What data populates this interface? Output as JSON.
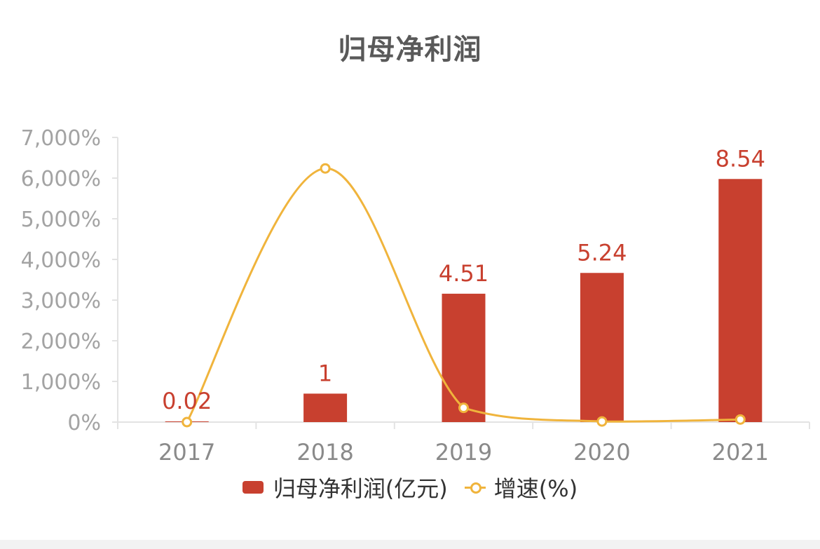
{
  "chart_data": {
    "type": "bar",
    "title": "归母净利润",
    "categories": [
      "2017",
      "2018",
      "2019",
      "2020",
      "2021"
    ],
    "series": [
      {
        "name": "归母净利润(亿元)",
        "kind": "bar",
        "color": "#c8402f",
        "values": [
          0.02,
          1,
          4.51,
          5.24,
          8.54
        ],
        "labels": [
          "0.02",
          "1",
          "4.51",
          "5.24",
          "8.54"
        ]
      },
      {
        "name": "增速(%)",
        "kind": "line",
        "color": "#f0b43c",
        "values": [
          0,
          6238,
          351,
          16,
          63
        ]
      }
    ],
    "y_axis": {
      "ticks": [
        "0%",
        "1,000%",
        "2,000%",
        "3,000%",
        "4,000%",
        "5,000%",
        "6,000%",
        "7,000%"
      ],
      "ylim": [
        0,
        7000
      ]
    },
    "bar_scale_max": 10,
    "grid": false,
    "legend": "bottom"
  }
}
